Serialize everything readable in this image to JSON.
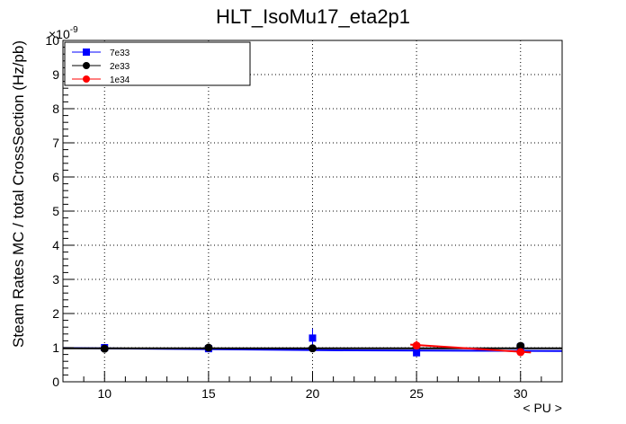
{
  "chart_data": {
    "type": "scatter",
    "title": "HLT_IsoMu17_eta2p1",
    "xlabel": "< PU >",
    "ylabel": "Steam Rates MC / total CrossSection (Hz/pb)",
    "y_multiplier": "×10",
    "y_exponent": "-9",
    "xlim": [
      8,
      32
    ],
    "ylim": [
      0,
      10
    ],
    "x_ticks": [
      10,
      15,
      20,
      25,
      30
    ],
    "y_ticks": [
      0,
      1,
      2,
      3,
      4,
      5,
      6,
      7,
      8,
      9,
      10
    ],
    "grid": true,
    "legend_position": "top-left",
    "series": [
      {
        "name": "7e33",
        "color": "#0000ff",
        "marker": "square",
        "x": [
          10,
          15,
          20,
          25,
          30
        ],
        "y": [
          1.0,
          0.97,
          1.28,
          0.85,
          1.02
        ],
        "yerr": [
          0.05,
          0.05,
          0.28,
          0.1,
          0.08
        ],
        "fit": {
          "x": [
            8,
            22,
            32
          ],
          "y": [
            0.99,
            0.92,
            0.9
          ],
          "color": "#0000ff"
        }
      },
      {
        "name": "2e33",
        "color": "#000000",
        "marker": "circle",
        "x": [
          10,
          15,
          20,
          30
        ],
        "y": [
          0.97,
          1.0,
          0.98,
          1.05
        ],
        "yerr": [
          0.02,
          0.02,
          0.03,
          0.04
        ],
        "fit": {
          "x": [
            8,
            32
          ],
          "y": [
            0.98,
            0.98
          ],
          "color": "#000000"
        }
      },
      {
        "name": "1e34",
        "color": "#ff0000",
        "marker": "circle",
        "x": [
          25,
          30
        ],
        "y": [
          1.06,
          0.87
        ],
        "yerr": [
          0.15,
          0.05
        ],
        "fit": {
          "x": [
            24.7,
            30.5
          ],
          "y": [
            1.09,
            0.86
          ],
          "color": "#ff0000"
        }
      }
    ]
  }
}
